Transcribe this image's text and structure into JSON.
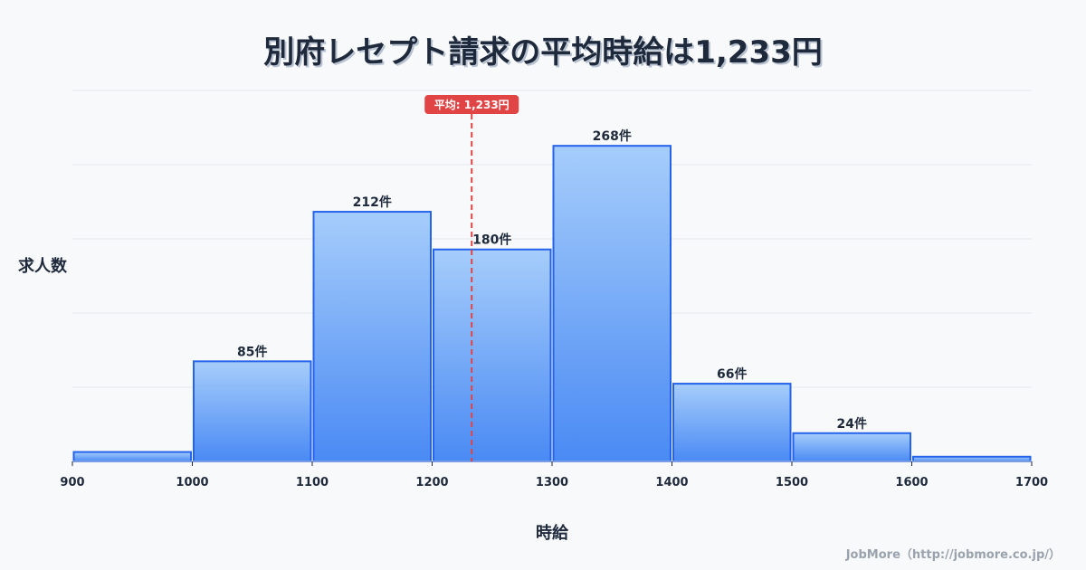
{
  "chart_data": {
    "type": "bar",
    "title": "別府レセプト請求の平均時給は1,233円",
    "xlabel": "時給",
    "ylabel": "求人数",
    "bins": [
      900,
      1000,
      1100,
      1200,
      1300,
      1400,
      1500,
      1600,
      1700
    ],
    "x_ticks": [
      "900",
      "1000",
      "1100",
      "1200",
      "1300",
      "1400",
      "1500",
      "1600",
      "1700"
    ],
    "values": [
      8,
      85,
      212,
      180,
      268,
      66,
      24,
      4
    ],
    "labels": [
      "",
      "85件",
      "212件",
      "180件",
      "268件",
      "66件",
      "24件",
      ""
    ],
    "ylim": [
      0,
      315
    ],
    "grid": true,
    "mean": {
      "value": 1233,
      "label": "平均: 1,233円",
      "color": "#e04444"
    },
    "bar_color": "#4a8af4",
    "bar_edge": "#2563eb"
  },
  "footer": "JobMore（http://jobmore.co.jp/）"
}
